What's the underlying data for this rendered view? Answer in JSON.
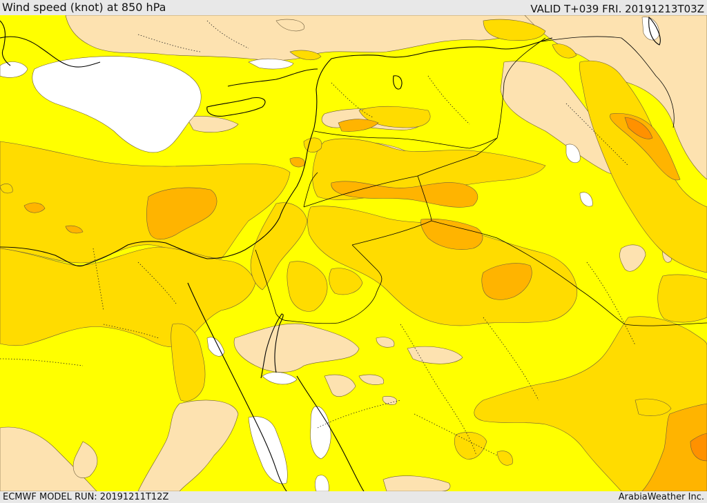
{
  "header": {
    "title": "Wind speed (knot) at 850 hPa",
    "valid_time": "VALID T+039 FRI. 20191213T03Z"
  },
  "footer": {
    "model_run": "ECMWF MODEL RUN: 20191211T12Z",
    "credit": "ArabiaWeather Inc."
  },
  "legend_colors": {
    "calm": "#ffffff",
    "light": "#fde2b0",
    "moderate": "#ffff00",
    "fresh": "#ffdc00",
    "strong": "#ffb400",
    "very_strong": "#ff9100"
  }
}
